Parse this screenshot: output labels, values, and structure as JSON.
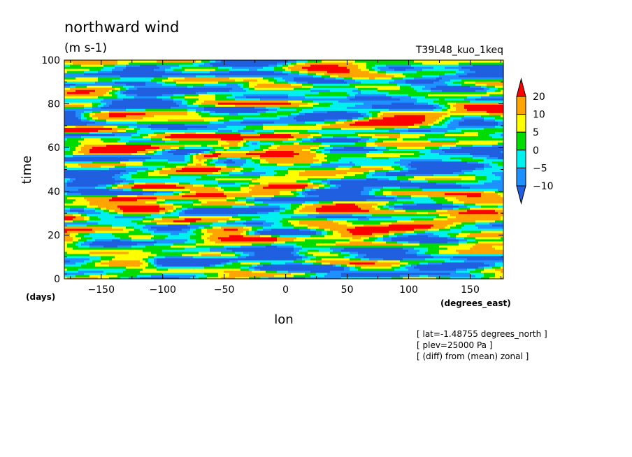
{
  "chart_data": {
    "type": "heatmap",
    "title": "northward wind",
    "subtitle": "(m s-1)",
    "experiment_label": "T39L48_kuo_1keq",
    "xlabel": "lon",
    "x_units": "(degrees_east)",
    "ylabel": "time",
    "y_units": "(days)",
    "xlim": [
      -180,
      177
    ],
    "ylim": [
      0,
      100
    ],
    "x_ticks": [
      -150,
      -100,
      -50,
      0,
      50,
      100,
      150
    ],
    "y_ticks": [
      0,
      20,
      40,
      60,
      80,
      100
    ],
    "color_levels": [
      -10,
      -5,
      0,
      5,
      10,
      20
    ],
    "color_level_labels": [
      "20",
      "10",
      "5",
      "0",
      "-5",
      "-10"
    ],
    "colors": {
      "below_neg10": "#1f5fe0",
      "neg10_to_neg5": "#1e90ff",
      "neg5_to_0": "#00f0f0",
      "0_to_5": "#00dc00",
      "5_to_10": "#ffff00",
      "10_to_20": "#ffa500",
      "above_20": "#ff0000"
    },
    "wave_features": [
      {
        "lon_start": -180,
        "time_start": 22,
        "lon_end": -60,
        "time_end": 40,
        "value": 14
      },
      {
        "lon_start": -180,
        "time_start": 28,
        "lon_end": -110,
        "time_end": 37,
        "value": 12
      },
      {
        "lon_start": -60,
        "time_start": 36,
        "lon_end": 60,
        "time_end": 48,
        "value": 11
      },
      {
        "lon_start": -20,
        "time_start": 65,
        "lon_end": 177,
        "time_end": 78,
        "value": 16
      },
      {
        "lon_start": -160,
        "time_start": 60,
        "lon_end": -40,
        "time_end": 65,
        "value": 12
      },
      {
        "lon_start": -120,
        "time_start": 18,
        "lon_end": -40,
        "time_end": 22,
        "value": 10
      },
      {
        "lon_start": -180,
        "time_start": 75,
        "lon_end": -40,
        "time_end": 88,
        "value": -12
      },
      {
        "lon_start": 20,
        "time_start": 40,
        "lon_end": 177,
        "time_end": 55,
        "value": -11
      },
      {
        "lon_start": -100,
        "time_start": 8,
        "lon_end": 0,
        "time_end": 12,
        "value": -12
      },
      {
        "lon_start": 60,
        "time_start": 20,
        "lon_end": 177,
        "time_end": 32,
        "value": 11
      },
      {
        "lon_start": 60,
        "time_start": 85,
        "lon_end": 177,
        "time_end": 97,
        "value": -10
      },
      {
        "lon_start": -180,
        "time_start": 45,
        "lon_end": -80,
        "time_end": 55,
        "value": -8
      },
      {
        "lon_start": 80,
        "time_start": 2,
        "lon_end": 177,
        "time_end": 10,
        "value": -9
      },
      {
        "lon_start": -70,
        "time_start": 55,
        "lon_end": -40,
        "time_end": 62,
        "value": 22
      }
    ],
    "annotations": [
      "[ lat=-1.48755 degrees_north ]",
      "[ plev=25000 Pa ]",
      "[ (diff) from (mean) zonal ]"
    ],
    "grid": false,
    "legend": "right colorbar"
  }
}
